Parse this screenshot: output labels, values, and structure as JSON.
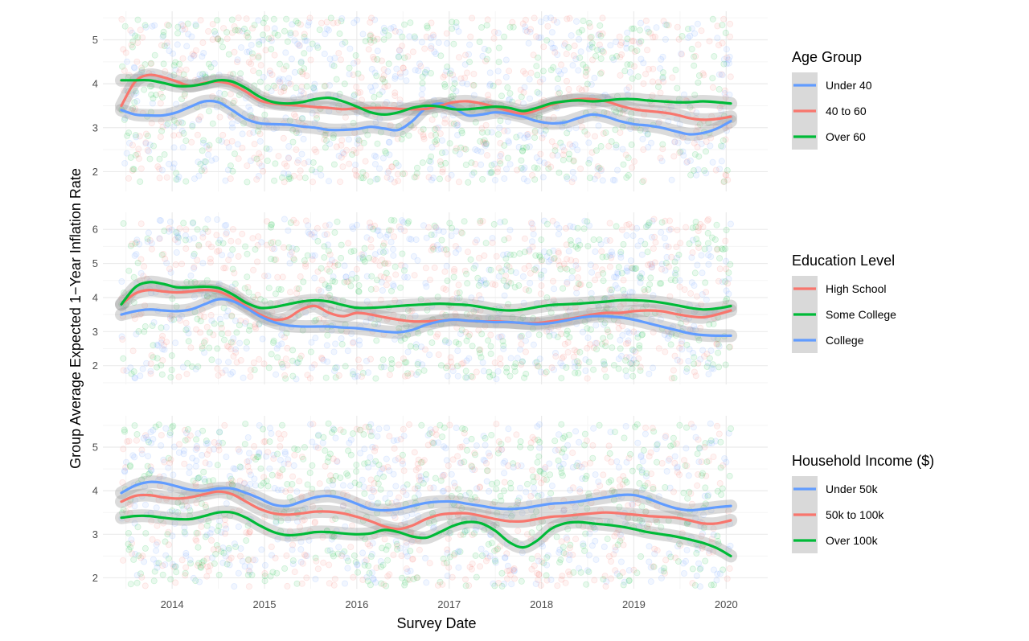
{
  "colors": {
    "blue": "#619cff",
    "red": "#f8766d",
    "green": "#00ba38",
    "grid_major": "#ebebeb",
    "grid_minor": "#f5f5f5",
    "ribbon": "#999999",
    "legend_bg": "#d9d9d9"
  },
  "chart_data": {
    "type": "line",
    "xlabel": "Survey Date",
    "ylabel": "Group Average Expected 1−Year Inflation Rate",
    "xlim": [
      2013.25,
      2020.45
    ],
    "x_ticks": [
      2014,
      2015,
      2016,
      2017,
      2018,
      2019,
      2020
    ],
    "x_tick_labels": [
      "2014",
      "2015",
      "2016",
      "2017",
      "2018",
      "2019",
      "2020"
    ],
    "x": [
      2013.45,
      2013.6,
      2013.75,
      2013.9,
      2014.05,
      2014.2,
      2014.35,
      2014.5,
      2014.65,
      2014.8,
      2014.95,
      2015.1,
      2015.25,
      2015.4,
      2015.55,
      2015.7,
      2015.85,
      2016.0,
      2016.15,
      2016.3,
      2016.45,
      2016.6,
      2016.75,
      2016.9,
      2017.05,
      2017.2,
      2017.35,
      2017.5,
      2017.65,
      2017.8,
      2017.95,
      2018.1,
      2018.25,
      2018.4,
      2018.55,
      2018.7,
      2018.85,
      2019.0,
      2019.15,
      2019.3,
      2019.45,
      2019.6,
      2019.75,
      2019.9,
      2020.05
    ],
    "panels": [
      {
        "legend_title": "Age Group",
        "ylim": [
          1.55,
          5.65
        ],
        "y_ticks": [
          2,
          3,
          4,
          5
        ],
        "y_tick_labels": [
          "2",
          "3",
          "4",
          "5"
        ],
        "scatter_range": [
          1.75,
          5.5
        ],
        "series": [
          {
            "name": "Under 40",
            "color": "#619cff",
            "values": [
              3.4,
              3.3,
              3.28,
              3.28,
              3.35,
              3.48,
              3.6,
              3.58,
              3.4,
              3.2,
              3.1,
              3.08,
              3.07,
              3.03,
              3.0,
              2.95,
              2.95,
              2.97,
              3.02,
              2.98,
              2.95,
              3.15,
              3.45,
              3.55,
              3.45,
              3.28,
              3.3,
              3.35,
              3.32,
              3.25,
              3.15,
              3.1,
              3.12,
              3.22,
              3.3,
              3.25,
              3.15,
              3.08,
              3.05,
              3.0,
              2.92,
              2.85,
              2.88,
              2.98,
              3.15
            ]
          },
          {
            "name": "40 to 60",
            "color": "#f8766d",
            "values": [
              3.5,
              4.05,
              4.2,
              4.15,
              4.05,
              3.95,
              4.02,
              4.05,
              3.98,
              3.82,
              3.62,
              3.55,
              3.52,
              3.5,
              3.47,
              3.45,
              3.42,
              3.44,
              3.45,
              3.45,
              3.43,
              3.42,
              3.43,
              3.5,
              3.58,
              3.6,
              3.55,
              3.47,
              3.38,
              3.32,
              3.4,
              3.52,
              3.6,
              3.65,
              3.65,
              3.6,
              3.5,
              3.42,
              3.38,
              3.35,
              3.3,
              3.22,
              3.18,
              3.2,
              3.25
            ]
          },
          {
            "name": "Over 60",
            "color": "#00ba38",
            "values": [
              4.08,
              4.08,
              4.08,
              4.02,
              3.95,
              3.95,
              4.0,
              4.08,
              4.05,
              3.9,
              3.7,
              3.58,
              3.55,
              3.58,
              3.65,
              3.68,
              3.6,
              3.48,
              3.35,
              3.3,
              3.35,
              3.45,
              3.5,
              3.48,
              3.42,
              3.42,
              3.45,
              3.48,
              3.45,
              3.38,
              3.45,
              3.55,
              3.6,
              3.62,
              3.6,
              3.62,
              3.65,
              3.65,
              3.62,
              3.6,
              3.58,
              3.58,
              3.6,
              3.58,
              3.55
            ]
          }
        ]
      },
      {
        "legend_title": "Education Level",
        "ylim": [
          1.45,
          6.5
        ],
        "y_ticks": [
          2,
          3,
          4,
          5,
          6
        ],
        "y_tick_labels": [
          "2",
          "3",
          "4",
          "5",
          "6"
        ],
        "scatter_range": [
          1.6,
          6.3
        ],
        "series": [
          {
            "name": "High School",
            "color": "#f8766d",
            "values": [
              3.8,
              4.12,
              4.22,
              4.18,
              4.15,
              4.18,
              4.22,
              4.18,
              4.0,
              3.75,
              3.5,
              3.35,
              3.4,
              3.65,
              3.75,
              3.55,
              3.45,
              3.55,
              3.5,
              3.42,
              3.35,
              3.3,
              3.3,
              3.32,
              3.35,
              3.32,
              3.3,
              3.3,
              3.28,
              3.25,
              3.25,
              3.3,
              3.35,
              3.42,
              3.5,
              3.55,
              3.55,
              3.6,
              3.62,
              3.6,
              3.52,
              3.45,
              3.42,
              3.5,
              3.62
            ]
          },
          {
            "name": "Some College",
            "color": "#00ba38",
            "values": [
              3.8,
              4.3,
              4.45,
              4.4,
              4.3,
              4.3,
              4.32,
              4.28,
              4.1,
              3.85,
              3.7,
              3.72,
              3.8,
              3.88,
              3.92,
              3.88,
              3.78,
              3.7,
              3.7,
              3.72,
              3.75,
              3.78,
              3.8,
              3.82,
              3.8,
              3.78,
              3.72,
              3.65,
              3.62,
              3.65,
              3.72,
              3.78,
              3.8,
              3.82,
              3.85,
              3.88,
              3.92,
              3.92,
              3.9,
              3.85,
              3.78,
              3.7,
              3.65,
              3.68,
              3.75
            ]
          },
          {
            "name": "College",
            "color": "#619cff",
            "values": [
              3.5,
              3.6,
              3.65,
              3.62,
              3.6,
              3.65,
              3.8,
              3.95,
              3.9,
              3.7,
              3.45,
              3.28,
              3.18,
              3.15,
              3.15,
              3.15,
              3.12,
              3.1,
              3.05,
              3.0,
              2.98,
              3.05,
              3.2,
              3.3,
              3.35,
              3.32,
              3.3,
              3.28,
              3.28,
              3.25,
              3.22,
              3.25,
              3.32,
              3.4,
              3.45,
              3.45,
              3.42,
              3.35,
              3.25,
              3.15,
              3.05,
              2.95,
              2.9,
              2.88,
              2.88
            ]
          }
        ]
      },
      {
        "legend_title": "Household Income ($)",
        "ylim": [
          1.75,
          5.72
        ],
        "y_ticks": [
          2,
          3,
          4,
          5
        ],
        "y_tick_labels": [
          "2",
          "3",
          "4",
          "5"
        ],
        "scatter_range": [
          1.8,
          5.55
        ],
        "series": [
          {
            "name": "Under 50k",
            "color": "#619cff",
            "values": [
              3.95,
              4.12,
              4.2,
              4.18,
              4.1,
              4.02,
              4.0,
              4.05,
              4.05,
              3.95,
              3.82,
              3.68,
              3.65,
              3.75,
              3.85,
              3.88,
              3.82,
              3.7,
              3.58,
              3.55,
              3.58,
              3.65,
              3.72,
              3.75,
              3.75,
              3.7,
              3.65,
              3.6,
              3.58,
              3.6,
              3.65,
              3.7,
              3.72,
              3.75,
              3.8,
              3.85,
              3.9,
              3.9,
              3.82,
              3.7,
              3.6,
              3.55,
              3.58,
              3.62,
              3.65
            ]
          },
          {
            "name": "50k to 100k",
            "color": "#f8766d",
            "values": [
              3.75,
              3.88,
              3.9,
              3.85,
              3.82,
              3.85,
              3.92,
              3.98,
              3.92,
              3.75,
              3.58,
              3.48,
              3.45,
              3.48,
              3.52,
              3.52,
              3.48,
              3.4,
              3.3,
              3.18,
              3.12,
              3.2,
              3.35,
              3.45,
              3.48,
              3.48,
              3.42,
              3.35,
              3.3,
              3.3,
              3.35,
              3.4,
              3.42,
              3.45,
              3.48,
              3.5,
              3.48,
              3.45,
              3.42,
              3.4,
              3.38,
              3.32,
              3.25,
              3.25,
              3.32
            ]
          },
          {
            "name": "Over 100k",
            "color": "#00ba38",
            "values": [
              3.38,
              3.42,
              3.42,
              3.38,
              3.35,
              3.35,
              3.42,
              3.5,
              3.5,
              3.38,
              3.2,
              3.05,
              2.98,
              3.0,
              3.05,
              3.05,
              3.02,
              3.0,
              3.02,
              3.1,
              3.05,
              2.95,
              2.92,
              3.05,
              3.2,
              3.28,
              3.25,
              3.08,
              2.82,
              2.7,
              2.85,
              3.12,
              3.25,
              3.28,
              3.25,
              3.22,
              3.18,
              3.12,
              3.05,
              3.0,
              2.95,
              2.88,
              2.8,
              2.68,
              2.5
            ]
          }
        ]
      }
    ]
  }
}
